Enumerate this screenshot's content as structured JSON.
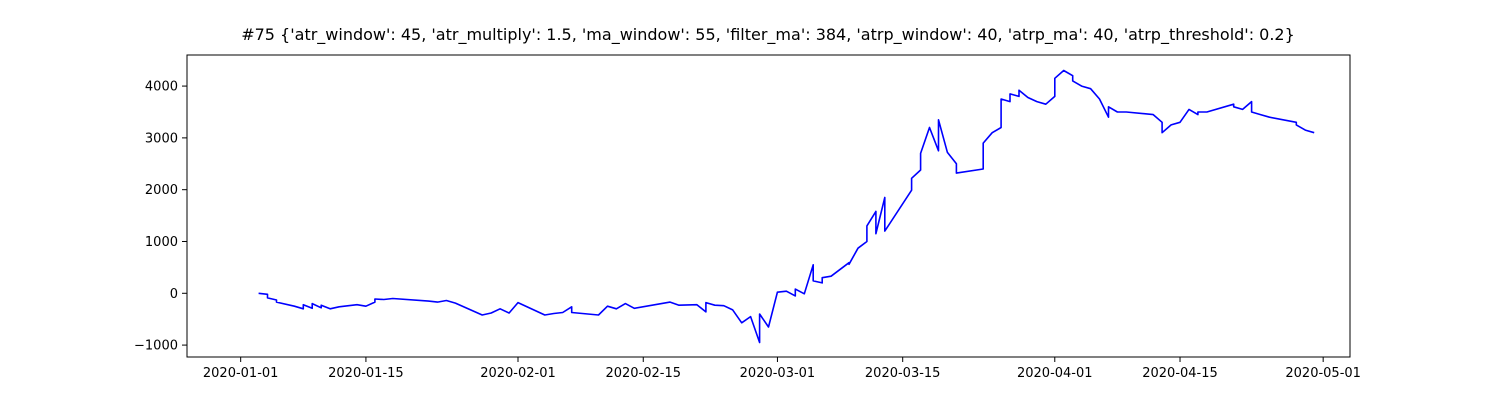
{
  "chart_data": {
    "type": "line",
    "title": "#75 {'atr_window': 45, 'atr_multiply': 1.5, 'ma_window': 55, 'filter_ma': 384, 'atrp_window': 40, 'atrp_ma': 40, 'atrp_threshold': 0.2}",
    "xlabel": "",
    "ylabel": "",
    "x_axis": "date",
    "xlim": [
      "2019-12-26",
      "2020-05-04"
    ],
    "ylim": [
      -1230,
      4600
    ],
    "grid": false,
    "legend": "none",
    "x_ticks": [
      "2020-01-01",
      "2020-01-15",
      "2020-02-01",
      "2020-02-15",
      "2020-03-01",
      "2020-03-15",
      "2020-04-01",
      "2020-04-15",
      "2020-05-01"
    ],
    "y_ticks": [
      -1000,
      0,
      1000,
      2000,
      3000,
      4000
    ],
    "series": [
      {
        "color": "#0000ff",
        "x": [
          "2020-01-03",
          "2020-01-03",
          "2020-01-04",
          "2020-01-04",
          "2020-01-04",
          "2020-01-05",
          "2020-01-05",
          "2020-01-07",
          "2020-01-08",
          "2020-01-08",
          "2020-01-09",
          "2020-01-09",
          "2020-01-10",
          "2020-01-10",
          "2020-01-11",
          "2020-01-12",
          "2020-01-14",
          "2020-01-15",
          "2020-01-16",
          "2020-01-16",
          "2020-01-17",
          "2020-01-18",
          "2020-01-22",
          "2020-01-23",
          "2020-01-24",
          "2020-01-25",
          "2020-01-28",
          "2020-01-29",
          "2020-01-30",
          "2020-01-31",
          "2020-02-01",
          "2020-02-04",
          "2020-02-05",
          "2020-02-06",
          "2020-02-07",
          "2020-02-07",
          "2020-02-10",
          "2020-02-11",
          "2020-02-12",
          "2020-02-13",
          "2020-02-14",
          "2020-02-18",
          "2020-02-19",
          "2020-02-21",
          "2020-02-22",
          "2020-02-22",
          "2020-02-23",
          "2020-02-24",
          "2020-02-25",
          "2020-02-26",
          "2020-02-27",
          "2020-02-28",
          "2020-02-28",
          "2020-02-29",
          "2020-03-01",
          "2020-03-02",
          "2020-03-03",
          "2020-03-03",
          "2020-03-04",
          "2020-03-05",
          "2020-03-05",
          "2020-03-06",
          "2020-03-06",
          "2020-03-07",
          "2020-03-09",
          "2020-03-09",
          "2020-03-10",
          "2020-03-11",
          "2020-03-11",
          "2020-03-12",
          "2020-03-12",
          "2020-03-13",
          "2020-03-13",
          "2020-03-16",
          "2020-03-16",
          "2020-03-17",
          "2020-03-17",
          "2020-03-18",
          "2020-03-19",
          "2020-03-19",
          "2020-03-20",
          "2020-03-21",
          "2020-03-21",
          "2020-03-24",
          "2020-03-24",
          "2020-03-25",
          "2020-03-26",
          "2020-03-26",
          "2020-03-27",
          "2020-03-27",
          "2020-03-28",
          "2020-03-28",
          "2020-03-29",
          "2020-03-30",
          "2020-03-31",
          "2020-04-01",
          "2020-04-01",
          "2020-04-02",
          "2020-04-03",
          "2020-04-03",
          "2020-04-04",
          "2020-04-05",
          "2020-04-06",
          "2020-04-07",
          "2020-04-07",
          "2020-04-08",
          "2020-04-09",
          "2020-04-12",
          "2020-04-13",
          "2020-04-13",
          "2020-04-14",
          "2020-04-15",
          "2020-04-16",
          "2020-04-17",
          "2020-04-17",
          "2020-04-18",
          "2020-04-21",
          "2020-04-21",
          "2020-04-22",
          "2020-04-23",
          "2020-04-23",
          "2020-04-24",
          "2020-04-25",
          "2020-04-25",
          "2020-04-28",
          "2020-04-28",
          "2020-04-29",
          "2020-04-30"
        ],
        "y": [
          0,
          0,
          -20,
          -70,
          -90,
          -130,
          -170,
          -250,
          -300,
          -220,
          -290,
          -200,
          -280,
          -230,
          -300,
          -260,
          -220,
          -250,
          -170,
          -110,
          -120,
          -100,
          -150,
          -170,
          -140,
          -190,
          -420,
          -380,
          -300,
          -380,
          -180,
          -420,
          -390,
          -370,
          -260,
          -370,
          -420,
          -250,
          -300,
          -200,
          -290,
          -170,
          -230,
          -220,
          -360,
          -180,
          -230,
          -240,
          -320,
          -570,
          -450,
          -950,
          -400,
          -650,
          20,
          40,
          -50,
          80,
          -10,
          550,
          240,
          200,
          300,
          330,
          590,
          560,
          870,
          1000,
          1300,
          1580,
          1150,
          1850,
          1200,
          1990,
          2220,
          2380,
          2700,
          3200,
          2750,
          3350,
          2720,
          2500,
          2320,
          2400,
          2900,
          3100,
          3200,
          3750,
          3700,
          3850,
          3800,
          3920,
          3780,
          3700,
          3650,
          3800,
          4150,
          4300,
          4200,
          4100,
          4000,
          3950,
          3750,
          3400,
          3600,
          3500,
          3500,
          3450,
          3300,
          3100,
          3250,
          3300,
          3550,
          3450,
          3500,
          3500,
          3650,
          3600,
          3550,
          3700,
          3500,
          3450,
          3400,
          3400,
          3300,
          3250,
          3150,
          3100
        ]
      }
    ]
  }
}
